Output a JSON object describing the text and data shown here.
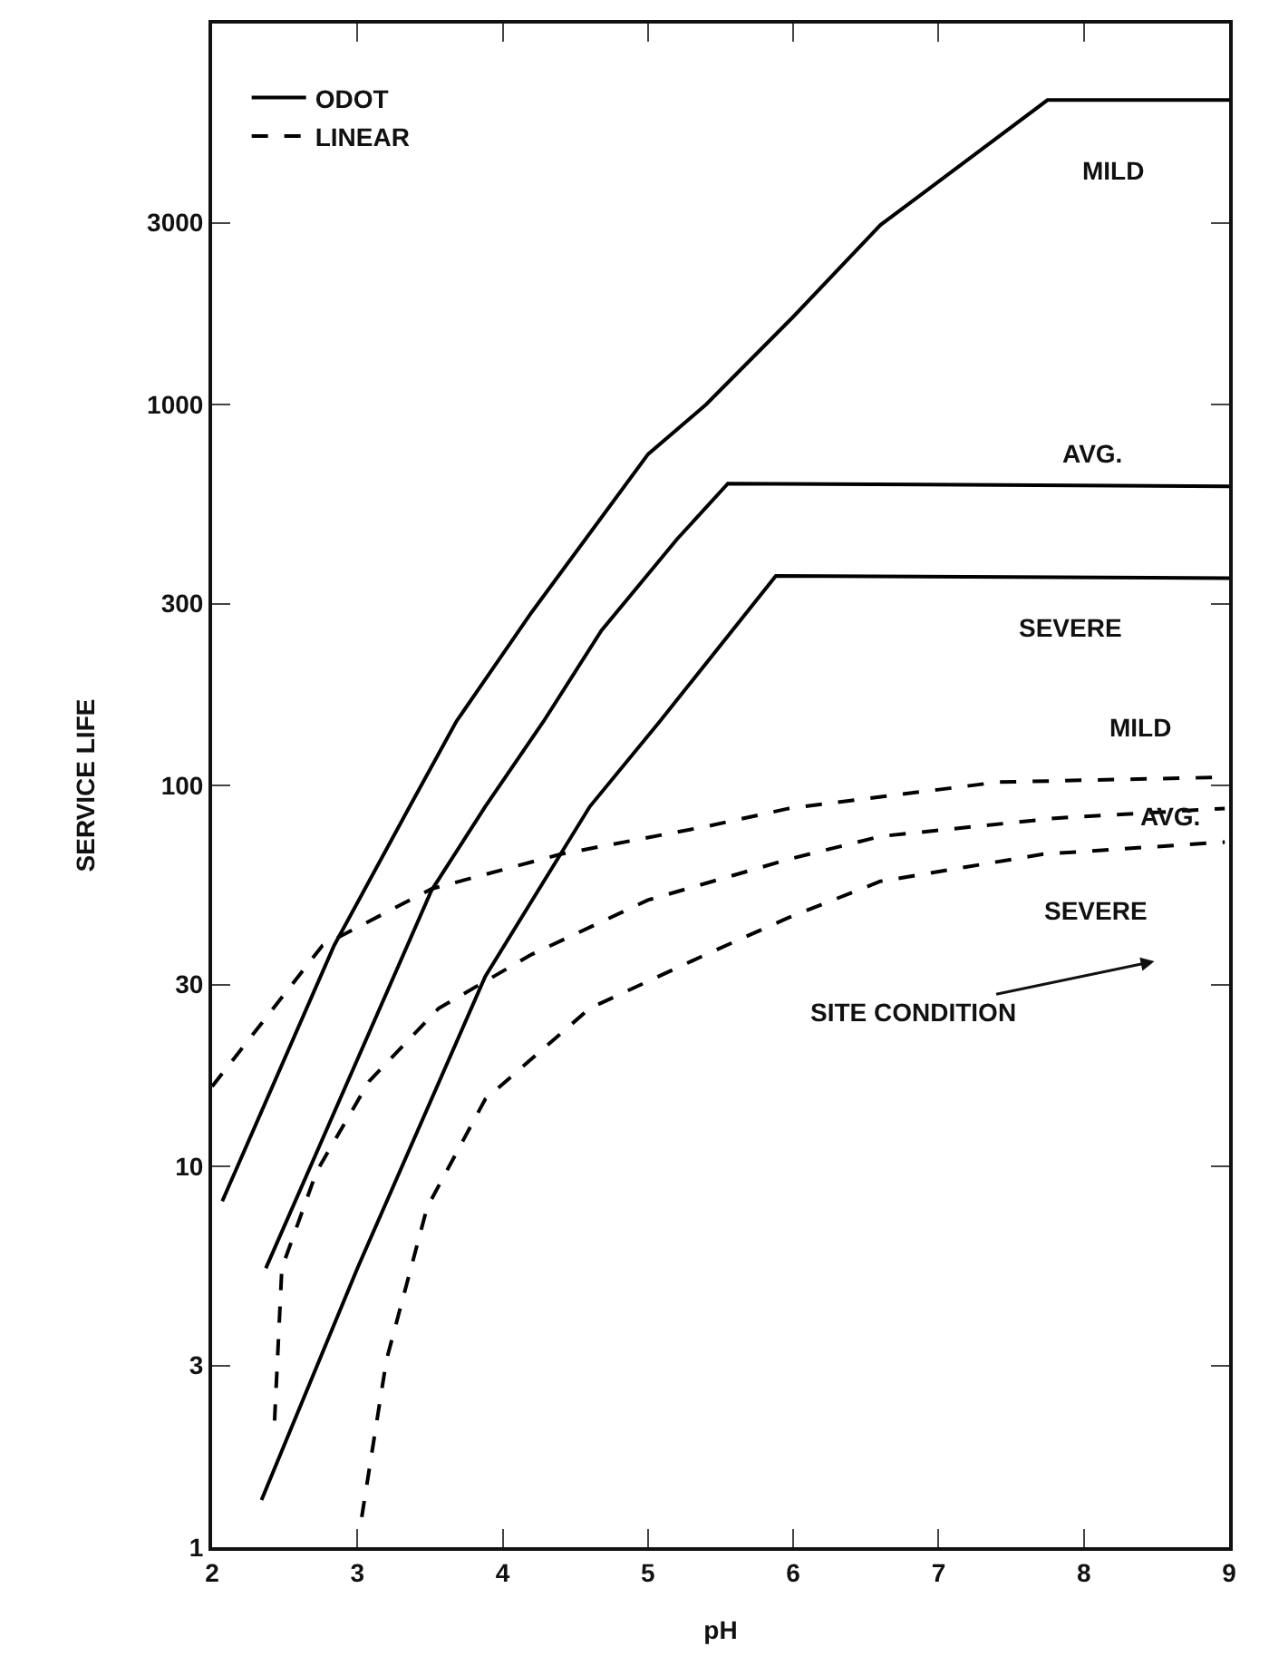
{
  "chart_data": {
    "type": "line",
    "xlabel": "pH",
    "ylabel": "SERVICE LIFE",
    "xlim": [
      2,
      9
    ],
    "xticks": [
      2,
      3,
      4,
      5,
      6,
      7,
      8,
      9
    ],
    "ylim": [
      1,
      10000
    ],
    "yticks": [
      1,
      3,
      10,
      30,
      100,
      300,
      1000,
      3000
    ],
    "log": "y",
    "grid": false,
    "legend": "top left",
    "marker": "none",
    "series": [
      {
        "name": "ODOT",
        "color": "#000000",
        "line_style": "solid",
        "x": [
          2.07,
          2.84,
          3.36,
          3.68,
          4.2,
          5.0,
          5.4,
          6.0,
          6.6,
          7.75,
          9.0
        ],
        "values": [
          8.1,
          38,
          88,
          147,
          285,
          740,
          1000,
          1700,
          2960,
          6300,
          6300
        ]
      },
      {
        "color": "#000000",
        "line_style": "solid",
        "x": [
          2.37,
          3.51,
          3.88,
          4.28,
          4.68,
          5.2,
          5.55,
          9.0
        ],
        "values": [
          5.4,
          53,
          88,
          147,
          255,
          443,
          620,
          610
        ]
      },
      {
        "color": "#000000",
        "line_style": "solid",
        "x": [
          2.34,
          3.0,
          3.88,
          4.6,
          5.08,
          5.88,
          9.0
        ],
        "values": [
          1.33,
          5.4,
          31.5,
          88,
          147,
          355,
          350
        ]
      },
      {
        "name": "LINEAR",
        "color": "#000000",
        "line_style": "dashed",
        "x": [
          2.0,
          2.76,
          3.51,
          4.4,
          5.4,
          5.97,
          7.41,
          8.92
        ],
        "values": [
          16.2,
          38,
          53.5,
          66,
          78,
          87,
          102,
          105
        ]
      },
      {
        "color": "#000000",
        "line_style": "dashed",
        "x": [
          2.43,
          2.48,
          2.72,
          3.08,
          3.56,
          4.2,
          5.0,
          5.97,
          6.6,
          7.8,
          8.97
        ],
        "values": [
          2.15,
          5.4,
          9.7,
          16.7,
          26,
          36,
          50,
          64,
          73.5,
          82,
          87
        ]
      },
      {
        "color": "#000000",
        "line_style": "dashed",
        "x": [
          3.03,
          3.2,
          3.48,
          3.88,
          4.6,
          5.4,
          5.97,
          6.6,
          7.72,
          8.97
        ],
        "values": [
          1.2,
          3.1,
          7.8,
          15,
          26,
          36,
          45,
          56,
          66,
          71
        ]
      }
    ],
    "annotations": [
      "MILD",
      "AVG.",
      "SEVERE",
      "MILD",
      {
        "text": "AVG.",
        "x": 8.59,
        "y": 83
      },
      "SEVERE",
      "SITE CONDITION"
    ]
  }
}
